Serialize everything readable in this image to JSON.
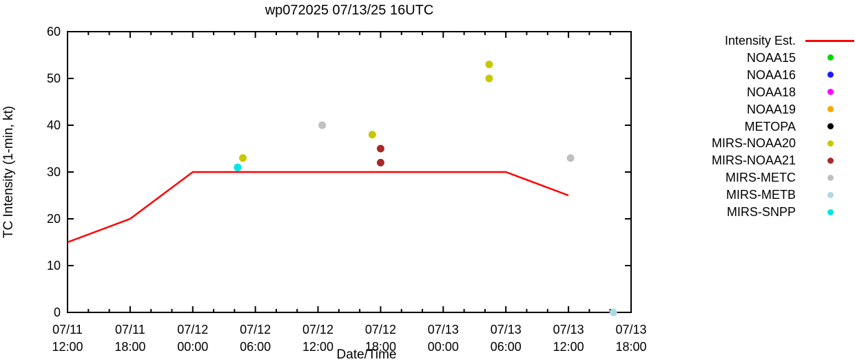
{
  "chart_data": {
    "type": "line",
    "title": "wp072025 07/13/25 16UTC",
    "xlabel": "Date/Time",
    "ylabel": "TC Intensity (1-min, kt)",
    "grid": false,
    "legend_position": "right-outside",
    "ylim": [
      0,
      60
    ],
    "y_ticks": [
      0,
      10,
      20,
      30,
      40,
      50,
      60
    ],
    "x_range_hours": [
      0,
      54
    ],
    "x_hours_origin_label": "07/11 12:00",
    "x_major_tick_interval_hours": 6,
    "x_minor_tick_interval_hours": 2,
    "x_major_ticks": [
      {
        "hours": 0,
        "date": "07/11",
        "time": "12:00"
      },
      {
        "hours": 6,
        "date": "07/11",
        "time": "18:00"
      },
      {
        "hours": 12,
        "date": "07/12",
        "time": "00:00"
      },
      {
        "hours": 18,
        "date": "07/12",
        "time": "06:00"
      },
      {
        "hours": 24,
        "date": "07/12",
        "time": "12:00"
      },
      {
        "hours": 30,
        "date": "07/12",
        "time": "18:00"
      },
      {
        "hours": 36,
        "date": "07/13",
        "time": "00:00"
      },
      {
        "hours": 42,
        "date": "07/13",
        "time": "06:00"
      },
      {
        "hours": 48,
        "date": "07/13",
        "time": "12:00"
      },
      {
        "hours": 54,
        "date": "07/13",
        "time": "18:00"
      }
    ],
    "line_series": {
      "name": "Intensity Est.",
      "color": "#ff0000",
      "points": [
        {
          "hours": 0,
          "kt": 15
        },
        {
          "hours": 6,
          "kt": 20
        },
        {
          "hours": 12,
          "kt": 30
        },
        {
          "hours": 42,
          "kt": 30
        },
        {
          "hours": 48,
          "kt": 25
        }
      ]
    },
    "scatter_series": [
      {
        "name": "NOAA15",
        "color": "#00d800",
        "points": []
      },
      {
        "name": "NOAA16",
        "color": "#1a1aff",
        "points": []
      },
      {
        "name": "NOAA18",
        "color": "#ff00ff",
        "points": []
      },
      {
        "name": "NOAA19",
        "color": "#ffa500",
        "points": []
      },
      {
        "name": "METOPA",
        "color": "#000000",
        "points": []
      },
      {
        "name": "MIRS-NOAA20",
        "color": "#c8c800",
        "points": [
          {
            "hours": 16.8,
            "kt": 33
          },
          {
            "hours": 29.2,
            "kt": 38
          },
          {
            "hours": 40.4,
            "kt": 53
          },
          {
            "hours": 40.4,
            "kt": 50
          }
        ]
      },
      {
        "name": "MIRS-NOAA21",
        "color": "#a52a2a",
        "points": [
          {
            "hours": 30.0,
            "kt": 35
          },
          {
            "hours": 30.0,
            "kt": 32
          }
        ]
      },
      {
        "name": "MIRS-METC",
        "color": "#c0c0c0",
        "points": [
          {
            "hours": 24.4,
            "kt": 40
          },
          {
            "hours": 48.2,
            "kt": 33
          }
        ]
      },
      {
        "name": "MIRS-METB",
        "color": "#add8e6",
        "points": [
          {
            "hours": 52.3,
            "kt": 0
          }
        ]
      },
      {
        "name": "MIRS-SNPP",
        "color": "#00e6e6",
        "points": [
          {
            "hours": 16.3,
            "kt": 31
          }
        ]
      }
    ]
  }
}
